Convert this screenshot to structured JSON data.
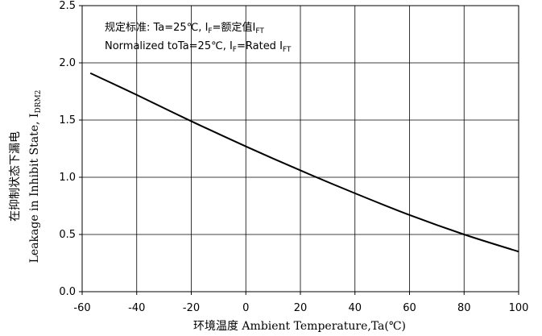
{
  "chart_data": {
    "type": "line",
    "title": "",
    "xlabel": "环境温度 Ambient Temperature,Ta(℃)",
    "ylabel_cn": "在抑制状态下漏电",
    "ylabel_en_main": "Leakage in Inhibit State, I",
    "ylabel_en_sub": "DRM2",
    "xlim": [
      -60,
      100
    ],
    "ylim": [
      0.0,
      2.5
    ],
    "xticks": [
      -60,
      -40,
      -20,
      0,
      20,
      40,
      60,
      80,
      100
    ],
    "yticks": [
      0.0,
      0.5,
      1.0,
      1.5,
      2.0,
      2.5
    ],
    "xtick_labels": [
      "-60",
      "-40",
      "-20",
      "0",
      "20",
      "40",
      "60",
      "80",
      "100"
    ],
    "ytick_labels": [
      "0.0",
      "0.5",
      "1.0",
      "1.5",
      "2.0",
      "2.5"
    ],
    "grid": true,
    "annotations": {
      "line1_pre": "规定标准: Ta=25℃, I",
      "line1_sub1": "F",
      "line1_mid": "=额定值I",
      "line1_sub2": "FT",
      "line2_pre": "Normalized toTa=25℃, I",
      "line2_sub1": "F",
      "line2_mid": "=Rated I",
      "line2_sub2": "FT"
    },
    "series": [
      {
        "color": "#000000",
        "x": [
          -57,
          -40,
          -20,
          0,
          20,
          40,
          60,
          80,
          100
        ],
        "y": [
          1.91,
          1.72,
          1.49,
          1.27,
          1.06,
          0.86,
          0.67,
          0.5,
          0.35
        ]
      }
    ]
  }
}
